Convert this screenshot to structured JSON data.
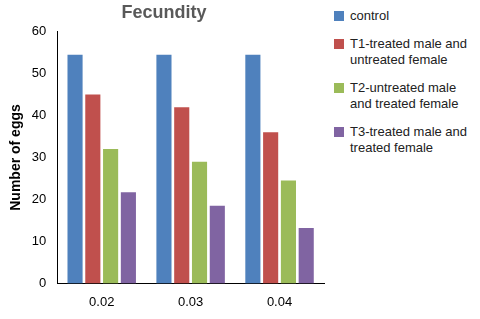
{
  "chart_data": {
    "type": "bar",
    "title": "Fecundity",
    "categories": [
      "0.02",
      "0.03",
      "0.04"
    ],
    "y_label": "Number of eggs",
    "series": [
      {
        "name": "control",
        "color": "#4f81bd",
        "values": [
          54.5,
          54.5,
          54.5
        ]
      },
      {
        "name": "T1-treated male and untreated female",
        "color": "#c0504d",
        "values": [
          45,
          42,
          36
        ]
      },
      {
        "name": "T2-untreated male and treated female",
        "color": "#9bbb59",
        "values": [
          32,
          29,
          24.5
        ]
      },
      {
        "name": "T3-treated male and treated female",
        "color": "#8064a2",
        "values": [
          21.7,
          18.5,
          13.2
        ]
      }
    ],
    "ylim": [
      0,
      60
    ],
    "yticks": [
      0,
      10,
      20,
      30,
      40,
      50,
      60
    ],
    "grid": false,
    "legend": "right"
  }
}
